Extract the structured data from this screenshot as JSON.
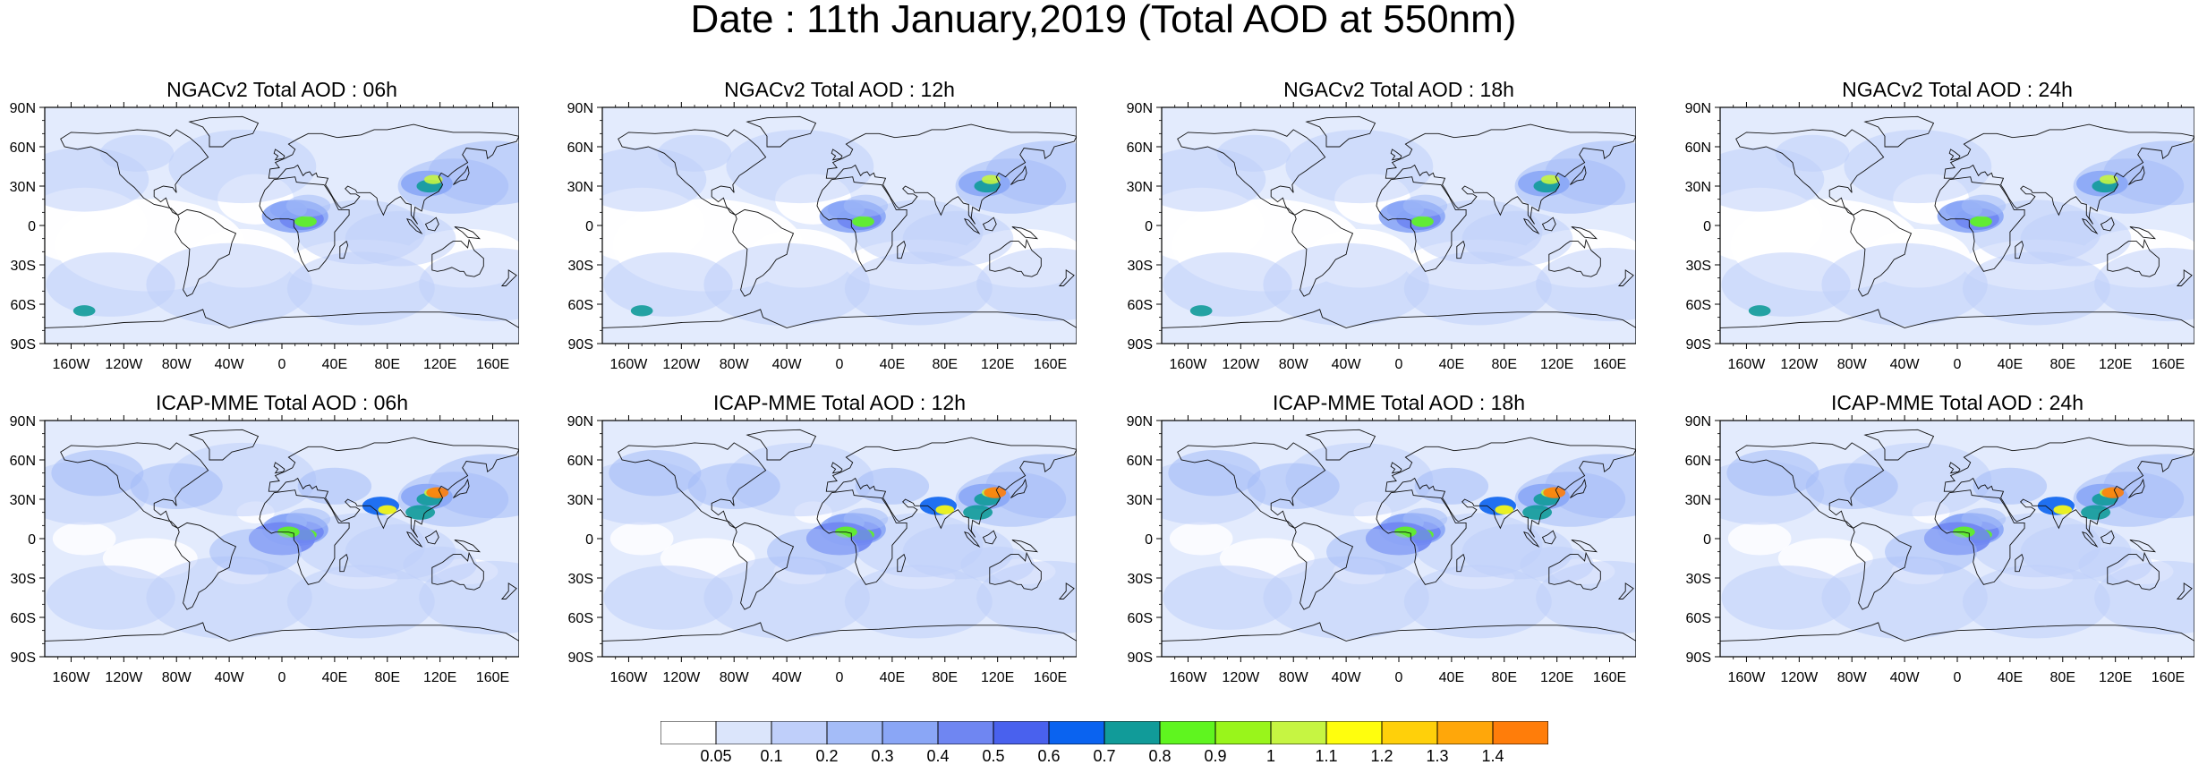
{
  "title": "Date : 11th January,2019 (Total AOD at 550nm)",
  "panels": [
    {
      "title": "NGACv2 Total AOD : 06h",
      "model": "NGACv2",
      "hour": "06h"
    },
    {
      "title": "NGACv2 Total AOD : 12h",
      "model": "NGACv2",
      "hour": "12h"
    },
    {
      "title": "NGACv2 Total AOD : 18h",
      "model": "NGACv2",
      "hour": "18h"
    },
    {
      "title": "NGACv2 Total AOD : 24h",
      "model": "NGACv2",
      "hour": "24h"
    },
    {
      "title": "ICAP-MME Total AOD : 06h",
      "model": "ICAP-MME",
      "hour": "06h"
    },
    {
      "title": "ICAP-MME Total AOD : 12h",
      "model": "ICAP-MME",
      "hour": "12h"
    },
    {
      "title": "ICAP-MME Total AOD : 18h",
      "model": "ICAP-MME",
      "hour": "18h"
    },
    {
      "title": "ICAP-MME Total AOD : 24h",
      "model": "ICAP-MME",
      "hour": "24h"
    }
  ],
  "axes": {
    "lat_labels": [
      "90N",
      "60N",
      "30N",
      "0",
      "30S",
      "60S",
      "90S"
    ],
    "lon_labels": [
      "160W",
      "120W",
      "80W",
      "40W",
      "0",
      "40E",
      "80E",
      "120E",
      "160E"
    ]
  },
  "colorbar": {
    "labels": [
      "0.05",
      "0.1",
      "0.2",
      "0.3",
      "0.4",
      "0.5",
      "0.6",
      "0.7",
      "0.8",
      "0.9",
      "1",
      "1.1",
      "1.2",
      "1.3",
      "1.4"
    ],
    "colors": [
      "#ffffff",
      "#dbe5fb",
      "#bfcffa",
      "#a4bcf8",
      "#8aa6f6",
      "#6f86f2",
      "#4961ee",
      "#0a63f0",
      "#119b99",
      "#5ff51f",
      "#99f51b",
      "#c6f542",
      "#fffe0d",
      "#ffd00a",
      "#ffa70a",
      "#ff7d0a",
      "#f3261c"
    ]
  },
  "map_colors": {
    "ocean_base": "#e3ebfd",
    "land_base": "#ffffff"
  }
}
